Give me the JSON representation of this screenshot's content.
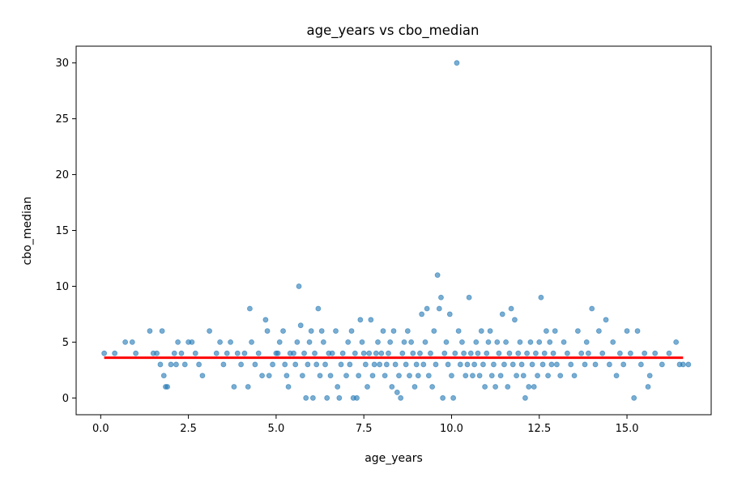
{
  "chart_data": {
    "type": "scatter",
    "title": "age_years vs cbo_median",
    "xlabel": "age_years",
    "ylabel": "cbo_median",
    "xlim": [
      -0.7,
      17.4
    ],
    "ylim": [
      -1.5,
      31.5
    ],
    "x_ticks": [
      0.0,
      2.5,
      5.0,
      7.5,
      10.0,
      12.5,
      15.0
    ],
    "x_tick_labels": [
      "0.0",
      "2.5",
      "5.0",
      "7.5",
      "10.0",
      "12.5",
      "15.0"
    ],
    "y_ticks": [
      0,
      5,
      10,
      15,
      20,
      25,
      30
    ],
    "y_tick_labels": [
      "0",
      "5",
      "10",
      "15",
      "20",
      "25",
      "30"
    ],
    "grid": false,
    "series": [
      {
        "kind": "scatter",
        "color": "#1f77b4",
        "opacity": 0.6,
        "points": [
          [
            0.1,
            4
          ],
          [
            0.4,
            4
          ],
          [
            0.7,
            5
          ],
          [
            0.9,
            5
          ],
          [
            1.0,
            4
          ],
          [
            1.4,
            6
          ],
          [
            1.5,
            4
          ],
          [
            1.6,
            4
          ],
          [
            1.7,
            3
          ],
          [
            1.75,
            6
          ],
          [
            1.8,
            2
          ],
          [
            1.85,
            1
          ],
          [
            1.9,
            1
          ],
          [
            2.0,
            3
          ],
          [
            2.1,
            4
          ],
          [
            2.15,
            3
          ],
          [
            2.2,
            5
          ],
          [
            2.3,
            4
          ],
          [
            2.4,
            3
          ],
          [
            2.5,
            5
          ],
          [
            2.6,
            5
          ],
          [
            2.7,
            4
          ],
          [
            2.8,
            3
          ],
          [
            2.9,
            2
          ],
          [
            3.1,
            6
          ],
          [
            3.3,
            4
          ],
          [
            3.4,
            5
          ],
          [
            3.5,
            3
          ],
          [
            3.6,
            4
          ],
          [
            3.7,
            5
          ],
          [
            3.8,
            1
          ],
          [
            3.9,
            4
          ],
          [
            4.0,
            3
          ],
          [
            4.1,
            4
          ],
          [
            4.2,
            1
          ],
          [
            4.25,
            8
          ],
          [
            4.3,
            5
          ],
          [
            4.4,
            3
          ],
          [
            4.5,
            4
          ],
          [
            4.6,
            2
          ],
          [
            4.7,
            7
          ],
          [
            4.75,
            6
          ],
          [
            4.8,
            2
          ],
          [
            4.9,
            3
          ],
          [
            5.0,
            4
          ],
          [
            5.05,
            4
          ],
          [
            5.1,
            5
          ],
          [
            5.2,
            6
          ],
          [
            5.25,
            3
          ],
          [
            5.3,
            2
          ],
          [
            5.35,
            1
          ],
          [
            5.4,
            4
          ],
          [
            5.5,
            4
          ],
          [
            5.55,
            3
          ],
          [
            5.6,
            5
          ],
          [
            5.65,
            10
          ],
          [
            5.7,
            6.5
          ],
          [
            5.75,
            2
          ],
          [
            5.8,
            4
          ],
          [
            5.85,
            0
          ],
          [
            5.9,
            3
          ],
          [
            5.95,
            5
          ],
          [
            6.0,
            6
          ],
          [
            6.05,
            0
          ],
          [
            6.1,
            4
          ],
          [
            6.15,
            3
          ],
          [
            6.2,
            8
          ],
          [
            6.25,
            2
          ],
          [
            6.3,
            6
          ],
          [
            6.35,
            5
          ],
          [
            6.4,
            3
          ],
          [
            6.45,
            0
          ],
          [
            6.5,
            4
          ],
          [
            6.55,
            2
          ],
          [
            6.6,
            4
          ],
          [
            6.7,
            6
          ],
          [
            6.75,
            1
          ],
          [
            6.8,
            0
          ],
          [
            6.85,
            3
          ],
          [
            6.9,
            4
          ],
          [
            7.0,
            2
          ],
          [
            7.05,
            5
          ],
          [
            7.1,
            3
          ],
          [
            7.15,
            6
          ],
          [
            7.2,
            0
          ],
          [
            7.25,
            4
          ],
          [
            7.3,
            0
          ],
          [
            7.35,
            2
          ],
          [
            7.4,
            7
          ],
          [
            7.45,
            5
          ],
          [
            7.5,
            4
          ],
          [
            7.55,
            3
          ],
          [
            7.6,
            1
          ],
          [
            7.65,
            4
          ],
          [
            7.7,
            7
          ],
          [
            7.75,
            2
          ],
          [
            7.8,
            3
          ],
          [
            7.85,
            4
          ],
          [
            7.9,
            5
          ],
          [
            7.95,
            3
          ],
          [
            8.0,
            4
          ],
          [
            8.05,
            6
          ],
          [
            8.1,
            2
          ],
          [
            8.15,
            3
          ],
          [
            8.2,
            4
          ],
          [
            8.25,
            5
          ],
          [
            8.3,
            1
          ],
          [
            8.35,
            6
          ],
          [
            8.4,
            3
          ],
          [
            8.45,
            0.5
          ],
          [
            8.5,
            2
          ],
          [
            8.55,
            0
          ],
          [
            8.6,
            4
          ],
          [
            8.65,
            5
          ],
          [
            8.7,
            3
          ],
          [
            8.75,
            6
          ],
          [
            8.8,
            2
          ],
          [
            8.85,
            5
          ],
          [
            8.9,
            4
          ],
          [
            8.95,
            1
          ],
          [
            9.0,
            3
          ],
          [
            9.05,
            2
          ],
          [
            9.1,
            4
          ],
          [
            9.15,
            7.5
          ],
          [
            9.2,
            3
          ],
          [
            9.25,
            5
          ],
          [
            9.3,
            8
          ],
          [
            9.35,
            2
          ],
          [
            9.4,
            4
          ],
          [
            9.45,
            1
          ],
          [
            9.5,
            6
          ],
          [
            9.55,
            3
          ],
          [
            9.6,
            11
          ],
          [
            9.65,
            8
          ],
          [
            9.7,
            9
          ],
          [
            9.75,
            0
          ],
          [
            9.8,
            4
          ],
          [
            9.85,
            5
          ],
          [
            9.9,
            3
          ],
          [
            9.95,
            7.5
          ],
          [
            10.0,
            2
          ],
          [
            10.05,
            0
          ],
          [
            10.1,
            4
          ],
          [
            10.15,
            30
          ],
          [
            10.2,
            6
          ],
          [
            10.25,
            3
          ],
          [
            10.3,
            5
          ],
          [
            10.35,
            4
          ],
          [
            10.4,
            2
          ],
          [
            10.45,
            3
          ],
          [
            10.5,
            9
          ],
          [
            10.55,
            4
          ],
          [
            10.6,
            2
          ],
          [
            10.65,
            3
          ],
          [
            10.7,
            5
          ],
          [
            10.75,
            4
          ],
          [
            10.8,
            2
          ],
          [
            10.85,
            6
          ],
          [
            10.9,
            3
          ],
          [
            10.95,
            1
          ],
          [
            11.0,
            4
          ],
          [
            11.05,
            5
          ],
          [
            11.1,
            6
          ],
          [
            11.15,
            2
          ],
          [
            11.2,
            3
          ],
          [
            11.25,
            1
          ],
          [
            11.3,
            5
          ],
          [
            11.35,
            4
          ],
          [
            11.4,
            2
          ],
          [
            11.45,
            7.5
          ],
          [
            11.5,
            3
          ],
          [
            11.55,
            5
          ],
          [
            11.6,
            1
          ],
          [
            11.65,
            4
          ],
          [
            11.7,
            8
          ],
          [
            11.75,
            3
          ],
          [
            11.8,
            7
          ],
          [
            11.85,
            2
          ],
          [
            11.9,
            4
          ],
          [
            11.95,
            5
          ],
          [
            12.0,
            3
          ],
          [
            12.05,
            2
          ],
          [
            12.1,
            0
          ],
          [
            12.15,
            4
          ],
          [
            12.2,
            1
          ],
          [
            12.25,
            5
          ],
          [
            12.3,
            3
          ],
          [
            12.35,
            1
          ],
          [
            12.4,
            4
          ],
          [
            12.45,
            2
          ],
          [
            12.5,
            5
          ],
          [
            12.55,
            9
          ],
          [
            12.6,
            3
          ],
          [
            12.65,
            4
          ],
          [
            12.7,
            6
          ],
          [
            12.75,
            2
          ],
          [
            12.8,
            5
          ],
          [
            12.85,
            3
          ],
          [
            12.9,
            4
          ],
          [
            12.95,
            6
          ],
          [
            13.0,
            3
          ],
          [
            13.1,
            2
          ],
          [
            13.2,
            5
          ],
          [
            13.3,
            4
          ],
          [
            13.4,
            3
          ],
          [
            13.5,
            2
          ],
          [
            13.6,
            6
          ],
          [
            13.7,
            4
          ],
          [
            13.8,
            3
          ],
          [
            13.85,
            5
          ],
          [
            13.9,
            4
          ],
          [
            14.0,
            8
          ],
          [
            14.1,
            3
          ],
          [
            14.2,
            6
          ],
          [
            14.3,
            4
          ],
          [
            14.4,
            7
          ],
          [
            14.5,
            3
          ],
          [
            14.6,
            5
          ],
          [
            14.7,
            2
          ],
          [
            14.8,
            4
          ],
          [
            14.9,
            3
          ],
          [
            15.0,
            6
          ],
          [
            15.1,
            4
          ],
          [
            15.2,
            0
          ],
          [
            15.3,
            6
          ],
          [
            15.4,
            3
          ],
          [
            15.5,
            4
          ],
          [
            15.6,
            1
          ],
          [
            15.65,
            2
          ],
          [
            15.8,
            4
          ],
          [
            16.0,
            3
          ],
          [
            16.2,
            4
          ],
          [
            16.4,
            5
          ],
          [
            16.5,
            3
          ],
          [
            16.6,
            3
          ],
          [
            16.75,
            3
          ]
        ]
      },
      {
        "kind": "line",
        "color": "#ff0000",
        "x": [
          0.1,
          16.6
        ],
        "y": [
          3.6,
          3.6
        ]
      }
    ]
  }
}
